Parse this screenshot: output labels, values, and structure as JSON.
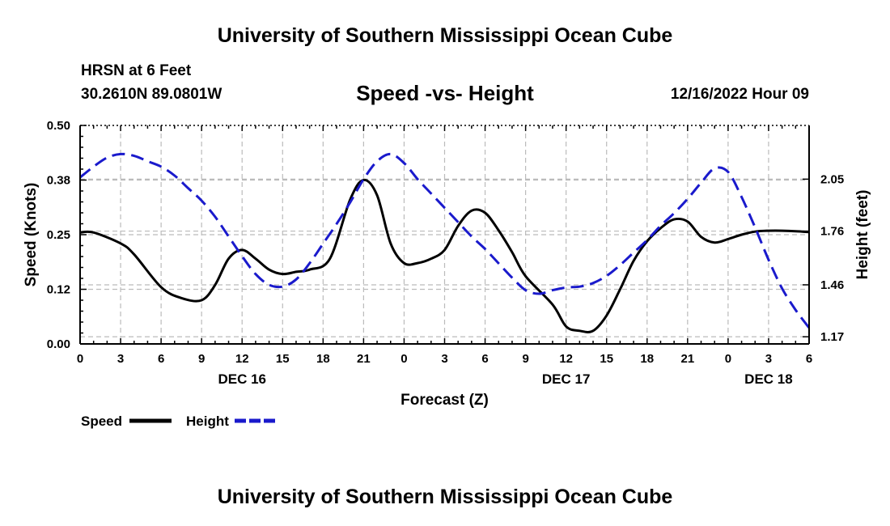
{
  "header": {
    "title": "University of Southern Mississippi Ocean Cube",
    "station": "HRSN at 6 Feet",
    "coords": "30.2610N  89.0801W",
    "chart_title": "Speed -vs- Height",
    "timestamp": "12/16/2022 Hour 09"
  },
  "footer": {
    "title": "University of Southern Mississippi Ocean Cube"
  },
  "colors": {
    "speed": "#000000",
    "height": "#1a1acc",
    "grid": "#bbbbbb"
  },
  "chart_data": {
    "type": "line",
    "title": "Speed -vs- Height",
    "xlabel": "Forecast (Z)",
    "ylabel": "Speed (Knots)",
    "y2label": "Height (feet)",
    "x_range_hours": [
      0,
      54
    ],
    "x_ticks": [
      0,
      3,
      6,
      9,
      12,
      15,
      18,
      21,
      24,
      27,
      30,
      33,
      36,
      39,
      42,
      45,
      48,
      51,
      54
    ],
    "x_tick_labels": [
      "0",
      "3",
      "6",
      "9",
      "12",
      "15",
      "18",
      "21",
      "0",
      "3",
      "6",
      "9",
      "12",
      "15",
      "18",
      "21",
      "0",
      "3",
      "6"
    ],
    "day_labels": [
      {
        "hour": 12,
        "label": "DEC 16"
      },
      {
        "hour": 36,
        "label": "DEC 17"
      },
      {
        "hour": 51,
        "label": "DEC 18"
      }
    ],
    "ylim": [
      0,
      0.5
    ],
    "y_ticks": [
      0,
      0.125,
      0.25,
      0.375,
      0.5
    ],
    "y_tick_labels": [
      "0.00",
      "0.12",
      "0.25",
      "0.38",
      "0.50"
    ],
    "y2lim": [
      1.13,
      2.35
    ],
    "y2_ticks": [
      1.17,
      1.46,
      1.76,
      2.05
    ],
    "y2_tick_labels": [
      "1.17",
      "1.46",
      "1.76",
      "2.05"
    ],
    "legend": [
      {
        "name": "Speed",
        "style": "solid"
      },
      {
        "name": "Height",
        "style": "dashed"
      }
    ],
    "series": [
      {
        "name": "Speed",
        "axis": "left",
        "x": [
          0,
          1,
          3,
          4,
          6,
          7.5,
          9,
          10,
          11,
          12,
          13,
          14,
          15,
          16,
          17,
          18.5,
          20,
          21,
          22,
          23,
          24,
          25,
          26,
          27,
          28,
          29,
          30,
          31,
          32,
          33,
          35,
          36,
          37,
          38,
          39,
          40,
          41,
          42,
          43,
          44,
          45,
          46,
          47,
          48,
          49,
          50,
          51,
          52,
          53,
          54
        ],
        "values": [
          0.255,
          0.255,
          0.23,
          0.205,
          0.13,
          0.105,
          0.1,
          0.135,
          0.195,
          0.215,
          0.195,
          0.17,
          0.16,
          0.165,
          0.17,
          0.195,
          0.33,
          0.375,
          0.34,
          0.23,
          0.185,
          0.185,
          0.195,
          0.215,
          0.27,
          0.305,
          0.3,
          0.26,
          0.21,
          0.155,
          0.09,
          0.04,
          0.03,
          0.03,
          0.065,
          0.125,
          0.19,
          0.235,
          0.265,
          0.285,
          0.28,
          0.245,
          0.232,
          0.24,
          0.25,
          0.257,
          0.259,
          0.259,
          0.258,
          0.256
        ]
      },
      {
        "name": "Height",
        "axis": "right",
        "x": [
          0,
          1,
          2,
          3,
          4,
          5,
          6,
          7,
          8,
          9,
          10,
          11,
          12,
          13,
          14,
          15,
          16,
          17,
          18,
          19,
          20,
          21,
          22,
          23,
          24,
          25,
          26,
          27,
          28,
          29,
          30,
          31,
          32,
          33,
          34,
          35,
          36,
          37,
          38,
          39,
          40,
          41,
          42,
          43,
          44,
          45,
          46,
          47,
          48,
          49,
          50,
          51,
          52,
          53,
          54
        ],
        "values": [
          2.06,
          2.12,
          2.17,
          2.19,
          2.18,
          2.15,
          2.12,
          2.07,
          2.0,
          1.93,
          1.84,
          1.73,
          1.62,
          1.52,
          1.46,
          1.45,
          1.49,
          1.58,
          1.69,
          1.8,
          1.92,
          2.05,
          2.15,
          2.19,
          2.14,
          2.05,
          1.97,
          1.89,
          1.81,
          1.73,
          1.66,
          1.58,
          1.5,
          1.43,
          1.41,
          1.43,
          1.445,
          1.45,
          1.47,
          1.51,
          1.57,
          1.64,
          1.71,
          1.79,
          1.86,
          1.94,
          2.03,
          2.11,
          2.09,
          1.95,
          1.78,
          1.6,
          1.44,
          1.32,
          1.22
        ]
      }
    ]
  }
}
